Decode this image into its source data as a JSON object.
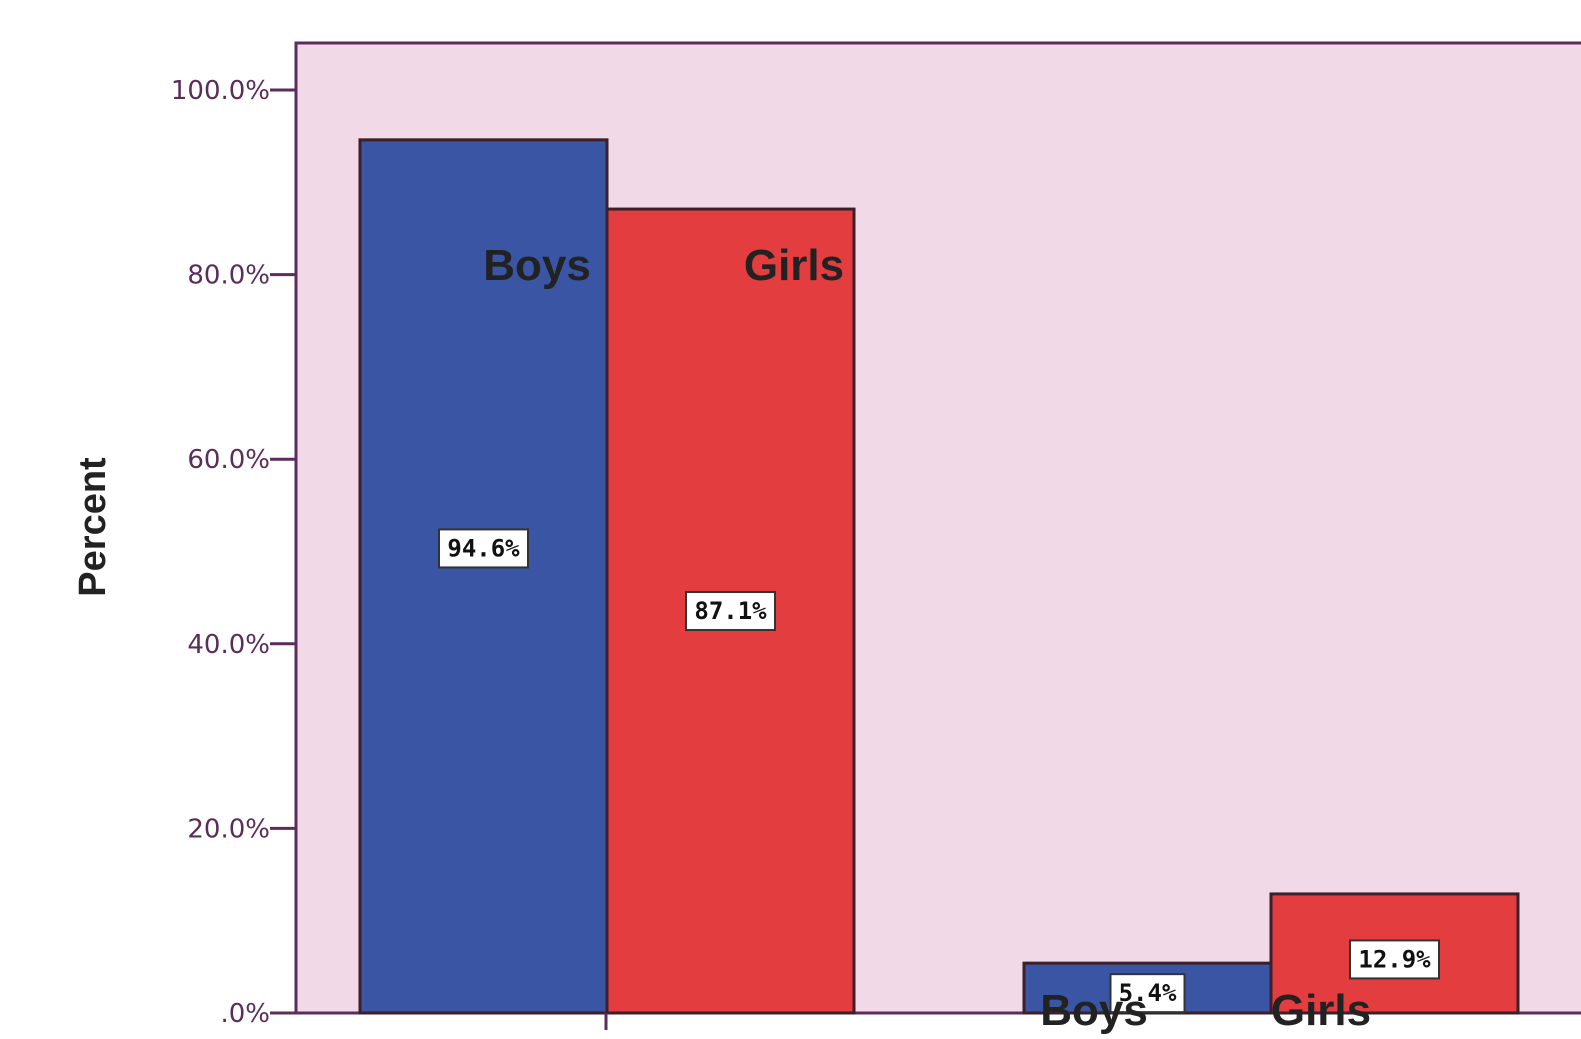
{
  "chart_data": {
    "type": "bar",
    "ylabel": "Percent",
    "ylim": [
      0,
      100
    ],
    "yticks": [
      ".0%",
      "20.0%",
      "40.0%",
      "60.0%",
      "80.0%",
      "100.0%"
    ],
    "ytick_values": [
      0,
      20,
      40,
      60,
      80,
      100
    ],
    "groups": [
      {
        "bars": [
          {
            "name": "Boys",
            "value": 94.6,
            "label": "94.6%",
            "color": "#3a55a4"
          },
          {
            "name": "Girls",
            "value": 87.1,
            "label": "87.1%",
            "color": "#e43d40"
          }
        ]
      },
      {
        "bars": [
          {
            "name": "Boys",
            "value": 5.4,
            "label": "5.4%",
            "color": "#3a55a4"
          },
          {
            "name": "Girls",
            "value": 12.9,
            "label": "12.9%",
            "color": "#e43d40"
          }
        ]
      }
    ],
    "plot_background": "#f2d9e8",
    "axis_color": "#5a2d5a",
    "grid": false
  }
}
